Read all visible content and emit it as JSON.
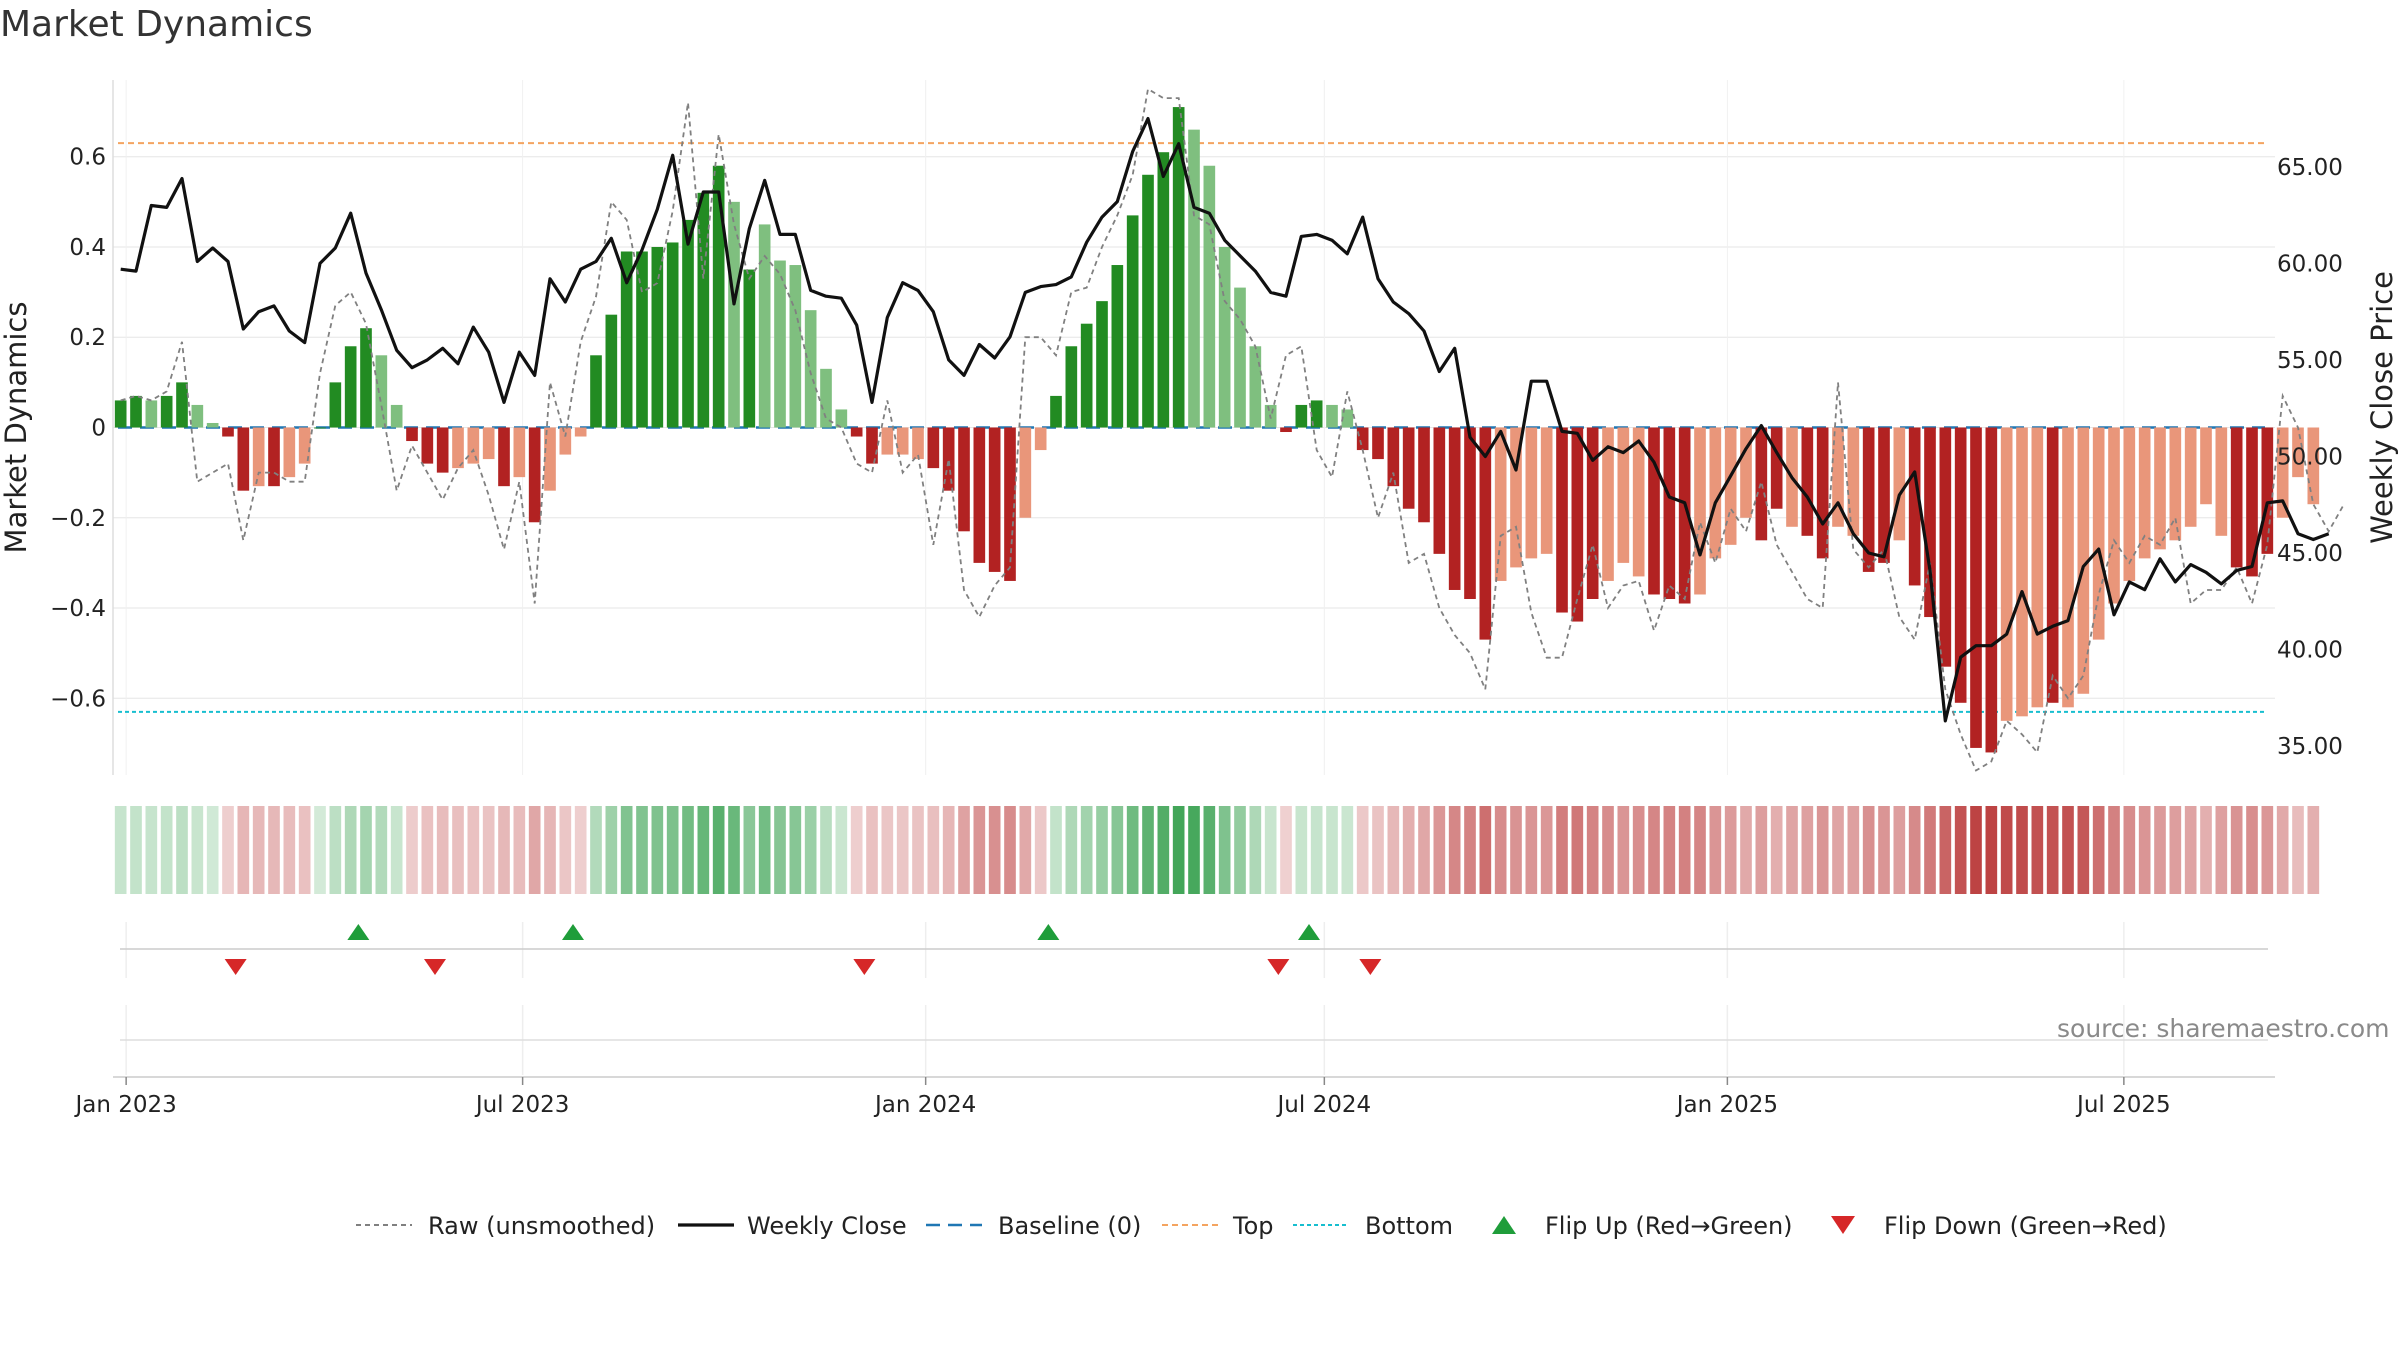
{
  "title": "Market Dynamics",
  "source": "source: sharemaestro.com",
  "colors": {
    "strong_green": "#228B22",
    "light_green": "#7FBF7F",
    "strong_red": "#B22222",
    "light_red": "#E9967A",
    "close_line": "#111111",
    "raw_line": "#808080",
    "baseline": "#1f77b4",
    "top_line": "#f4a460",
    "bottom_line": "#17becf",
    "flip_up": "#1f9d3a",
    "flip_down": "#d62728"
  },
  "chart_data": {
    "type": "bar",
    "title": "Market Dynamics",
    "ylabel_left": "Market Dynamics",
    "ylabel_right": "Weekly Close Price",
    "ylim_left": [
      -0.77,
      0.77
    ],
    "ylim_right": [
      33.5,
      69.5
    ],
    "yticks_left": [
      0.6,
      0.4,
      0.2,
      0,
      -0.2,
      -0.4,
      -0.6
    ],
    "ytick_labels_left": [
      "0.6",
      "0.4",
      "0.2",
      "0",
      "−0.2",
      "−0.4",
      "−0.6"
    ],
    "yticks_right": [
      65,
      60,
      55,
      50,
      45,
      40,
      35
    ],
    "ytick_labels_right": [
      "65.00",
      "60.00",
      "55.00",
      "50.00",
      "45.00",
      "40.00",
      "35.00"
    ],
    "x_start": "2022-12-26",
    "x_end": "2025-09-08",
    "xticks": [
      "2023-01-01",
      "2023-07-01",
      "2024-01-01",
      "2024-07-01",
      "2025-01-01",
      "2025-07-01"
    ],
    "xtick_labels": [
      "Jan 2023",
      "Jul 2023",
      "Jan 2024",
      "Jul 2024",
      "Jan 2025",
      "Jul 2025"
    ],
    "top_level": 0.63,
    "bottom_level": -0.63,
    "baseline_level": 0,
    "bars": [
      0.06,
      0.07,
      0.06,
      0.07,
      0.1,
      0.05,
      0.01,
      -0.02,
      -0.14,
      -0.13,
      -0.13,
      -0.11,
      -0.08,
      0.0,
      0.1,
      0.18,
      0.22,
      0.16,
      0.05,
      -0.03,
      -0.08,
      -0.1,
      -0.09,
      -0.08,
      -0.07,
      -0.13,
      -0.11,
      -0.21,
      -0.14,
      -0.06,
      -0.02,
      0.16,
      0.25,
      0.39,
      0.39,
      0.4,
      0.41,
      0.46,
      0.52,
      0.58,
      0.5,
      0.35,
      0.45,
      0.37,
      0.36,
      0.26,
      0.13,
      0.04,
      -0.02,
      -0.08,
      -0.06,
      -0.06,
      -0.07,
      -0.09,
      -0.14,
      -0.23,
      -0.3,
      -0.32,
      -0.34,
      -0.2,
      -0.05,
      0.07,
      0.18,
      0.23,
      0.28,
      0.36,
      0.47,
      0.56,
      0.61,
      0.71,
      0.66,
      0.58,
      0.4,
      0.31,
      0.18,
      0.05,
      -0.01,
      0.05,
      0.06,
      0.05,
      0.04,
      -0.05,
      -0.07,
      -0.13,
      -0.18,
      -0.21,
      -0.28,
      -0.36,
      -0.38,
      -0.47,
      -0.34,
      -0.31,
      -0.29,
      -0.28,
      -0.41,
      -0.43,
      -0.38,
      -0.34,
      -0.3,
      -0.33,
      -0.37,
      -0.38,
      -0.39,
      -0.37,
      -0.29,
      -0.26,
      -0.2,
      -0.25,
      -0.18,
      -0.22,
      -0.24,
      -0.29,
      -0.22,
      -0.24,
      -0.32,
      -0.3,
      -0.25,
      -0.35,
      -0.42,
      -0.53,
      -0.61,
      -0.71,
      -0.72,
      -0.65,
      -0.64,
      -0.62,
      -0.61,
      -0.62,
      -0.59,
      -0.47,
      -0.39,
      -0.34,
      -0.29,
      -0.27,
      -0.25,
      -0.22,
      -0.17,
      -0.24,
      -0.31,
      -0.33,
      -0.28,
      -0.2,
      -0.11,
      -0.17
    ],
    "bar_intensity": [
      "strong",
      "strong",
      "light",
      "strong",
      "strong",
      "light",
      "light",
      "strong",
      "strong",
      "light",
      "strong",
      "light",
      "light",
      "strong",
      "strong",
      "strong",
      "strong",
      "light",
      "light",
      "strong",
      "strong",
      "strong",
      "light",
      "light",
      "light",
      "strong",
      "light",
      "strong",
      "light",
      "light",
      "light",
      "strong",
      "strong",
      "strong",
      "strong",
      "strong",
      "strong",
      "strong",
      "strong",
      "strong",
      "light",
      "strong",
      "light",
      "light",
      "light",
      "light",
      "light",
      "light",
      "strong",
      "strong",
      "light",
      "light",
      "light",
      "strong",
      "strong",
      "strong",
      "strong",
      "strong",
      "strong",
      "light",
      "light",
      "strong",
      "strong",
      "strong",
      "strong",
      "strong",
      "strong",
      "strong",
      "strong",
      "strong",
      "light",
      "light",
      "light",
      "light",
      "light",
      "light",
      "strong",
      "strong",
      "strong",
      "light",
      "light",
      "strong",
      "strong",
      "strong",
      "strong",
      "strong",
      "strong",
      "strong",
      "strong",
      "strong",
      "light",
      "light",
      "light",
      "light",
      "strong",
      "strong",
      "strong",
      "light",
      "light",
      "light",
      "strong",
      "strong",
      "strong",
      "light",
      "light",
      "light",
      "light",
      "strong",
      "strong",
      "light",
      "strong",
      "strong",
      "light",
      "light",
      "strong",
      "strong",
      "light",
      "strong",
      "strong",
      "strong",
      "strong",
      "strong",
      "strong",
      "light",
      "light",
      "light",
      "strong",
      "light",
      "light",
      "light",
      "light",
      "light",
      "light",
      "light",
      "light",
      "light",
      "light",
      "light",
      "strong",
      "strong",
      "strong",
      "light",
      "light",
      "light",
      "strong"
    ],
    "raw": [
      0.06,
      0.07,
      0.06,
      0.08,
      0.19,
      -0.12,
      -0.1,
      -0.08,
      -0.25,
      -0.1,
      -0.1,
      -0.12,
      -0.12,
      0.12,
      0.27,
      0.3,
      0.23,
      0.05,
      -0.14,
      -0.04,
      -0.1,
      -0.16,
      -0.09,
      -0.05,
      -0.15,
      -0.27,
      -0.12,
      -0.39,
      0.1,
      -0.02,
      0.19,
      0.29,
      0.5,
      0.46,
      0.3,
      0.32,
      0.48,
      0.72,
      0.33,
      0.65,
      0.45,
      0.33,
      0.38,
      0.34,
      0.26,
      0.12,
      0.02,
      0.0,
      -0.08,
      -0.1,
      0.06,
      -0.1,
      -0.06,
      -0.26,
      -0.07,
      -0.36,
      -0.42,
      -0.35,
      -0.31,
      0.2,
      0.2,
      0.16,
      0.3,
      0.31,
      0.4,
      0.47,
      0.56,
      0.75,
      0.73,
      0.73,
      0.47,
      0.45,
      0.28,
      0.24,
      0.18,
      0.02,
      0.16,
      0.18,
      -0.05,
      -0.11,
      0.08,
      -0.05,
      -0.2,
      -0.1,
      -0.3,
      -0.28,
      -0.4,
      -0.46,
      -0.5,
      -0.58,
      -0.24,
      -0.22,
      -0.41,
      -0.51,
      -0.51,
      -0.38,
      -0.26,
      -0.4,
      -0.35,
      -0.34,
      -0.45,
      -0.35,
      -0.38,
      -0.21,
      -0.3,
      -0.18,
      -0.23,
      -0.12,
      -0.26,
      -0.32,
      -0.38,
      -0.4,
      0.1,
      -0.27,
      -0.31,
      -0.27,
      -0.42,
      -0.47,
      -0.3,
      -0.58,
      -0.68,
      -0.76,
      -0.74,
      -0.65,
      -0.68,
      -0.72,
      -0.55,
      -0.6,
      -0.55,
      -0.37,
      -0.25,
      -0.3,
      -0.24,
      -0.26,
      -0.2,
      -0.39,
      -0.36,
      -0.36,
      -0.31,
      -0.39,
      -0.26,
      0.07,
      0.0,
      -0.17,
      -0.23,
      -0.17
    ],
    "close": [
      59.7,
      59.6,
      63.0,
      62.9,
      64.4,
      60.1,
      60.8,
      60.1,
      56.6,
      57.5,
      57.8,
      56.5,
      55.9,
      60.0,
      60.8,
      62.6,
      59.5,
      57.6,
      55.5,
      54.6,
      55.0,
      55.6,
      54.8,
      56.7,
      55.4,
      52.8,
      55.4,
      54.2,
      59.2,
      58.0,
      59.7,
      60.1,
      61.3,
      59.0,
      60.7,
      62.8,
      65.6,
      61.0,
      63.7,
      63.7,
      57.9,
      61.8,
      64.3,
      61.5,
      61.5,
      58.6,
      58.3,
      58.2,
      56.8,
      52.8,
      57.2,
      59.0,
      58.6,
      57.5,
      55.0,
      54.2,
      55.8,
      55.1,
      56.2,
      58.5,
      58.8,
      58.9,
      59.3,
      61.1,
      62.4,
      63.2,
      65.8,
      67.5,
      64.5,
      66.2,
      62.9,
      62.6,
      61.2,
      60.4,
      59.6,
      58.5,
      58.3,
      61.4,
      61.5,
      61.2,
      60.5,
      62.4,
      59.2,
      58.0,
      57.4,
      56.5,
      54.4,
      55.6,
      51.0,
      50.0,
      51.3,
      49.3,
      53.9,
      53.9,
      51.3,
      51.2,
      49.8,
      50.5,
      50.2,
      50.8,
      49.7,
      47.9,
      47.6,
      44.9,
      47.6,
      49.0,
      50.4,
      51.6,
      50.2,
      48.9,
      47.9,
      46.5,
      47.6,
      46.0,
      45.0,
      44.8,
      48.0,
      49.2,
      44.1,
      36.3,
      39.6,
      40.2,
      40.2,
      40.8,
      43.0,
      40.8,
      41.2,
      41.5,
      44.3,
      45.2,
      41.8,
      43.5,
      43.1,
      44.7,
      43.5,
      44.4,
      44.0,
      43.4,
      44.1,
      44.3,
      47.6,
      47.7,
      46.0,
      45.7,
      46.0
    ],
    "flip_up": [
      "2023-04-17",
      "2023-07-24",
      "2024-02-26",
      "2024-06-24"
    ],
    "flip_down": [
      "2023-02-20",
      "2023-05-22",
      "2023-12-04",
      "2024-06-10",
      "2024-07-22"
    ],
    "legend": [
      "Raw (unsmoothed)",
      "Weekly Close",
      "Baseline (0)",
      "Top",
      "Bottom",
      "Flip Up (Red→Green)",
      "Flip Down (Green→Red)"
    ],
    "grid": true
  }
}
